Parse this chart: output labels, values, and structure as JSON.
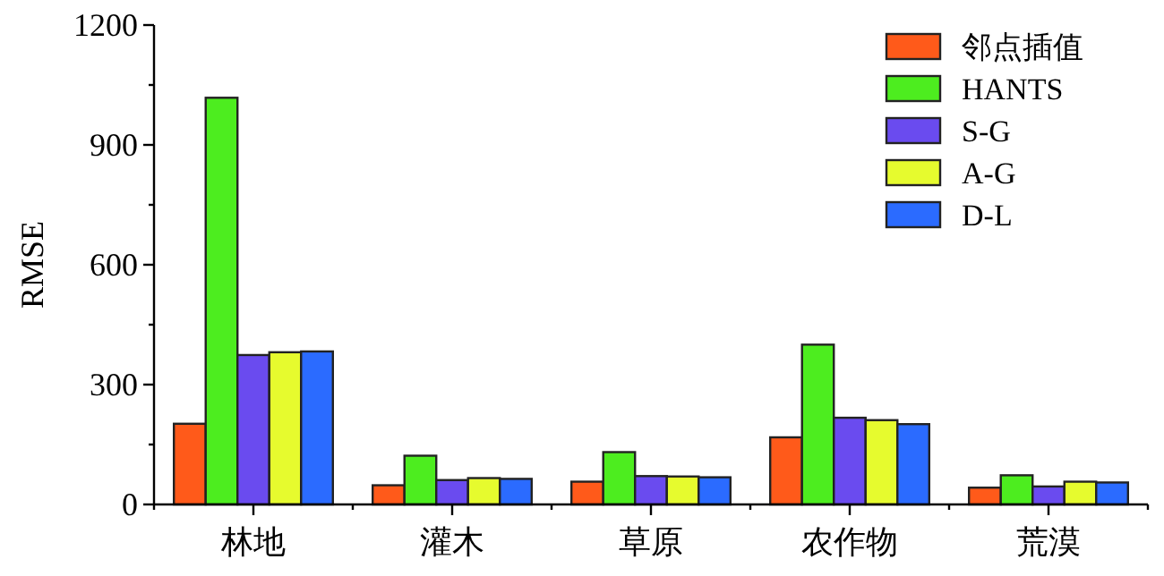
{
  "chart_data": {
    "type": "bar",
    "ylabel": "RMSE",
    "categories": [
      "林地",
      "灌木",
      "草原",
      "农作物",
      "荒漠"
    ],
    "series": [
      {
        "name": "邻点插值",
        "color": "#ff5a1a",
        "values": [
          202,
          48,
          57,
          168,
          42
        ]
      },
      {
        "name": "HANTS",
        "color": "#4ded1f",
        "values": [
          1018,
          122,
          131,
          400,
          73
        ]
      },
      {
        "name": "S-G",
        "color": "#6a4bef",
        "values": [
          374,
          61,
          71,
          217,
          45
        ]
      },
      {
        "name": "A-G",
        "color": "#e6fb2e",
        "values": [
          381,
          66,
          70,
          211,
          57
        ]
      },
      {
        "name": "D-L",
        "color": "#2b6bff",
        "values": [
          383,
          64,
          68,
          201,
          55
        ]
      }
    ],
    "ylim": [
      0,
      1200
    ],
    "yticks": [
      0,
      {
        "value": 150,
        "label": null
      },
      300,
      {
        "value": 450,
        "label": null
      },
      600,
      {
        "value": 750,
        "label": null
      },
      900,
      {
        "value": 1050,
        "label": null
      },
      1200
    ],
    "legend": "top right",
    "grid": false
  }
}
